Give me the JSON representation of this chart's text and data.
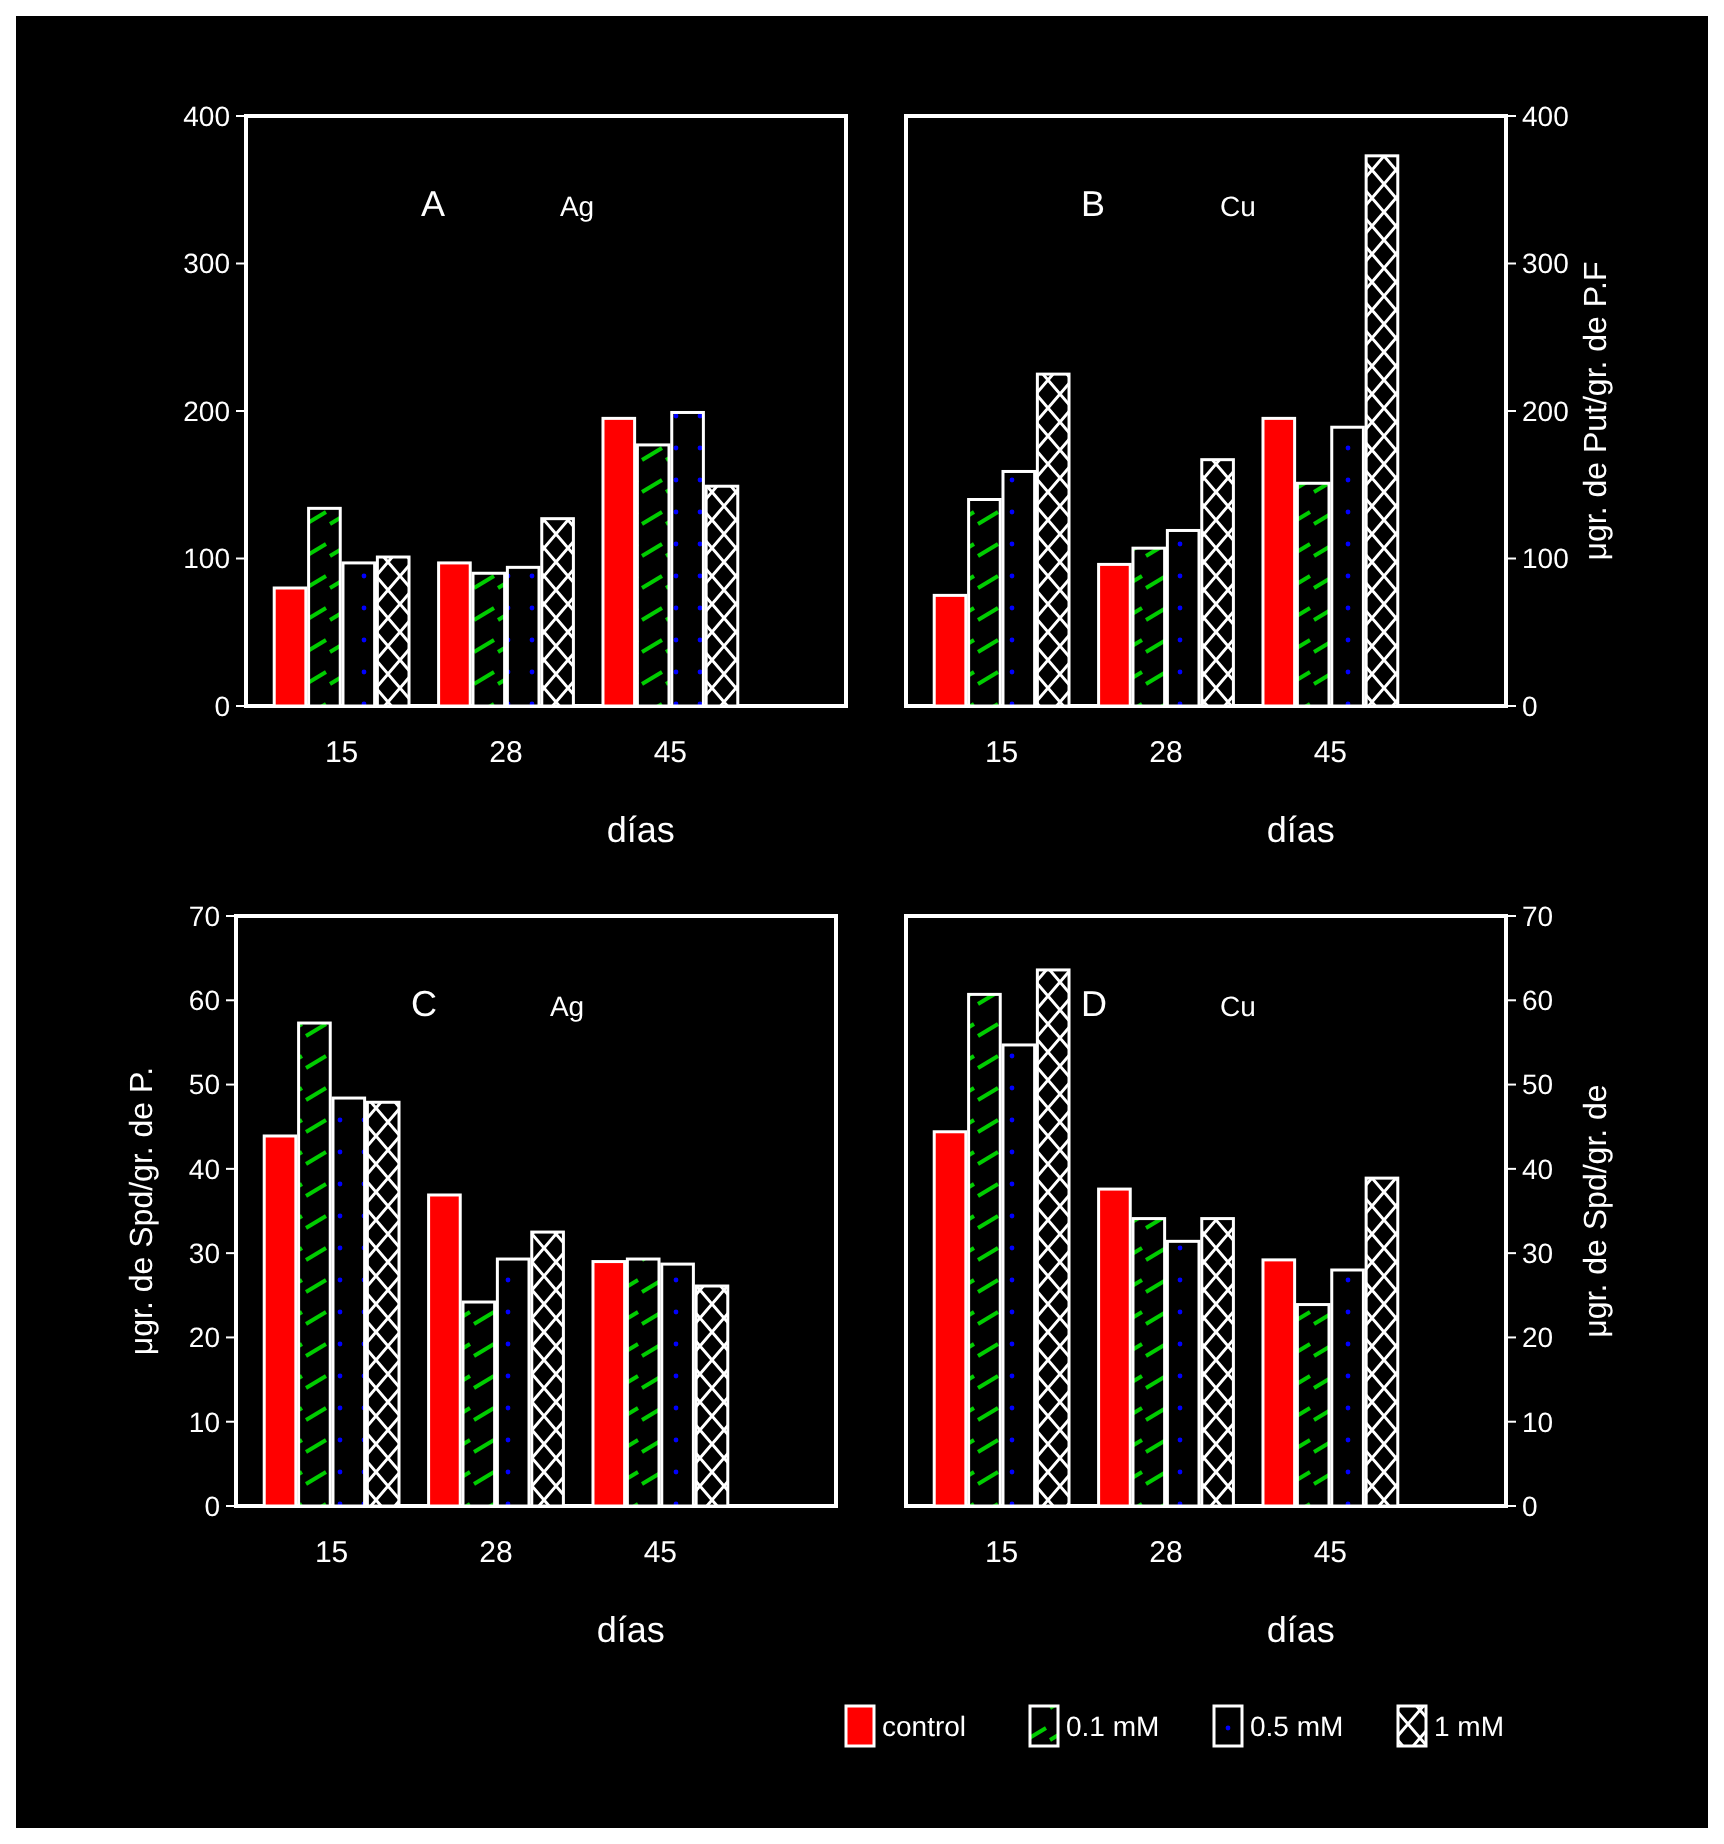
{
  "chart_data": [
    {
      "type": "bar",
      "annotations": [
        "A",
        "Ag"
      ],
      "xlabel": "días",
      "categories": [
        "15",
        "28",
        "45"
      ],
      "ylim": [
        0,
        400
      ],
      "yticks": [
        0,
        100,
        200,
        300,
        400
      ],
      "grid": false,
      "legend": false,
      "series": [
        {
          "color": "#ff0000",
          "values": [
            80,
            97,
            195
          ]
        },
        {
          "color": "#ffffff",
          "values": [
            134,
            90,
            177
          ]
        },
        {
          "color": "#ffffff",
          "values": [
            97,
            94,
            199
          ]
        },
        {
          "color": "#ffffff",
          "values": [
            101,
            127,
            149
          ]
        }
      ]
    },
    {
      "type": "bar",
      "annotations": [
        "B",
        "Cu"
      ],
      "xlabel": "días",
      "y2label": "μgr. de Put/gr. de P.F",
      "categories": [
        "15",
        "28",
        "45"
      ],
      "y2lim": [
        0,
        400
      ],
      "y2ticks": [
        0,
        100,
        200,
        300,
        400
      ],
      "grid": false,
      "legend": false,
      "series": [
        {
          "color": "#ff0000",
          "axis": "y2",
          "values": [
            75,
            96,
            195
          ]
        },
        {
          "color": "#ffffff",
          "axis": "y2",
          "values": [
            140,
            107,
            151
          ]
        },
        {
          "color": "#ffffff",
          "axis": "y2",
          "values": [
            159,
            119,
            189
          ]
        },
        {
          "color": "#ffffff",
          "axis": "y2",
          "values": [
            225,
            167,
            373
          ]
        }
      ]
    },
    {
      "type": "bar",
      "annotations": [
        "C",
        "Ag"
      ],
      "xlabel": "días",
      "ylabel": "μgr. de Spd/gr. de P.",
      "categories": [
        "15",
        "28",
        "45"
      ],
      "ylim": [
        0,
        70
      ],
      "yticks": [
        0,
        10,
        20,
        30,
        40,
        50,
        60,
        70
      ],
      "grid": false,
      "legend": false,
      "series": [
        {
          "color": "#ff0000",
          "values": [
            43.9,
            36.9,
            29
          ]
        },
        {
          "color": "#ffffff",
          "values": [
            57.3,
            24.2,
            29.3
          ]
        },
        {
          "color": "#ffffff",
          "values": [
            48.4,
            29.3,
            28.7
          ]
        },
        {
          "color": "#ffffff",
          "values": [
            47.9,
            32.5,
            26.1
          ]
        }
      ]
    },
    {
      "type": "bar",
      "annotations": [
        "D",
        "Cu"
      ],
      "xlabel": "días",
      "y2label": "μgr. de Spd/gr. de",
      "categories": [
        "15",
        "28",
        "45"
      ],
      "y2lim": [
        0,
        70
      ],
      "y2ticks": [
        0,
        10,
        20,
        30,
        40,
        50,
        60,
        70
      ],
      "grid": false,
      "legend": "bottom",
      "series": [
        {
          "name": "control",
          "color": "#ff0000",
          "axis": "y2",
          "values": [
            44.4,
            37.6,
            29.2
          ]
        },
        {
          "name": "0.1 mM",
          "color": "#ffffff",
          "axis": "y2",
          "values": [
            60.7,
            34.1,
            23.9
          ]
        },
        {
          "name": "0.5 mM",
          "color": "#ffffff",
          "axis": "y2",
          "values": [
            54.7,
            31.4,
            28
          ]
        },
        {
          "name": "1 mM",
          "color": "#ffffff",
          "axis": "y2",
          "values": [
            63.6,
            34.1,
            38.9
          ]
        }
      ]
    }
  ]
}
